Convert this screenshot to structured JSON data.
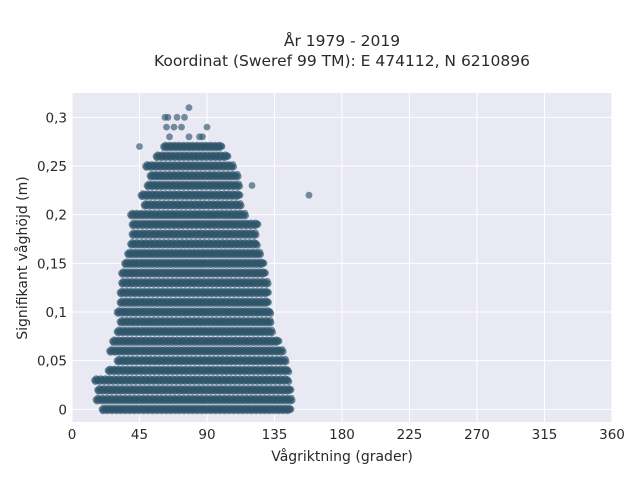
{
  "chart_data": {
    "type": "scatter",
    "title": [
      "År 1979 - 2019",
      "Koordinat (Sweref 99 TM): E 474112, N 6210896"
    ],
    "xlabel": "Vågriktning (grader)",
    "ylabel": "Signifikant våghöjd (m)",
    "xlim": [
      0,
      360
    ],
    "ylim": [
      -0.013,
      0.325
    ],
    "xticks": [
      0,
      45,
      90,
      135,
      180,
      225,
      270,
      315,
      360
    ],
    "xtick_labels": [
      "0",
      "45",
      "90",
      "135",
      "180",
      "225",
      "270",
      "315",
      "360"
    ],
    "yticks": [
      0,
      0.05,
      0.1,
      0.15,
      0.2,
      0.25,
      0.3
    ],
    "ytick_labels": [
      "0",
      "0,05",
      "0,1",
      "0,15",
      "0,2",
      "0,25",
      "0,3"
    ],
    "grid": true,
    "legend": "none",
    "marker_color": "#2f566b",
    "background_color": "#e9e9f3",
    "series": [
      {
        "levels": [
          {
            "y": 0.0,
            "xmin": 20,
            "xmax": 146
          },
          {
            "y": 0.01,
            "xmin": 16,
            "xmax": 147
          },
          {
            "y": 0.02,
            "xmin": 17,
            "xmax": 146
          },
          {
            "y": 0.03,
            "xmin": 15,
            "xmax": 145
          },
          {
            "y": 0.04,
            "xmin": 24,
            "xmax": 145
          },
          {
            "y": 0.05,
            "xmin": 30,
            "xmax": 143
          },
          {
            "y": 0.06,
            "xmin": 25,
            "xmax": 141
          },
          {
            "y": 0.07,
            "xmin": 27,
            "xmax": 138
          },
          {
            "y": 0.08,
            "xmin": 30,
            "xmax": 134
          },
          {
            "y": 0.09,
            "xmin": 32,
            "xmax": 133
          },
          {
            "y": 0.1,
            "xmin": 30,
            "xmax": 133
          },
          {
            "y": 0.11,
            "xmin": 32,
            "xmax": 131
          },
          {
            "y": 0.12,
            "xmin": 32,
            "xmax": 131
          },
          {
            "y": 0.13,
            "xmin": 33,
            "xmax": 131
          },
          {
            "y": 0.14,
            "xmin": 33,
            "xmax": 129
          },
          {
            "y": 0.15,
            "xmin": 35,
            "xmax": 128
          },
          {
            "y": 0.16,
            "xmin": 37,
            "xmax": 126
          },
          {
            "y": 0.17,
            "xmin": 39,
            "xmax": 124
          },
          {
            "y": 0.18,
            "xmin": 40,
            "xmax": 123
          },
          {
            "y": 0.19,
            "xmin": 40,
            "xmax": 124
          },
          {
            "y": 0.2,
            "xmin": 39,
            "xmax": 116
          },
          {
            "y": 0.21,
            "xmin": 48,
            "xmax": 113
          },
          {
            "y": 0.22,
            "xmin": 46,
            "xmax": 112
          },
          {
            "y": 0.23,
            "xmin": 50,
            "xmax": 112
          },
          {
            "y": 0.24,
            "xmin": 52,
            "xmax": 111
          },
          {
            "y": 0.25,
            "xmin": 49,
            "xmax": 108
          },
          {
            "y": 0.26,
            "xmin": 56,
            "xmax": 104
          },
          {
            "y": 0.27,
            "xmin": 61,
            "xmax": 100
          }
        ],
        "points": [
          [
            65,
            0.28
          ],
          [
            78,
            0.28
          ],
          [
            85,
            0.28
          ],
          [
            87,
            0.28
          ],
          [
            63,
            0.29
          ],
          [
            68,
            0.29
          ],
          [
            73,
            0.29
          ],
          [
            90,
            0.29
          ],
          [
            62,
            0.3
          ],
          [
            64,
            0.3
          ],
          [
            70,
            0.3
          ],
          [
            75,
            0.3
          ],
          [
            78,
            0.31
          ],
          [
            158,
            0.22
          ],
          [
            56,
            0.24
          ],
          [
            120,
            0.23
          ],
          [
            45,
            0.27
          ]
        ]
      }
    ]
  }
}
